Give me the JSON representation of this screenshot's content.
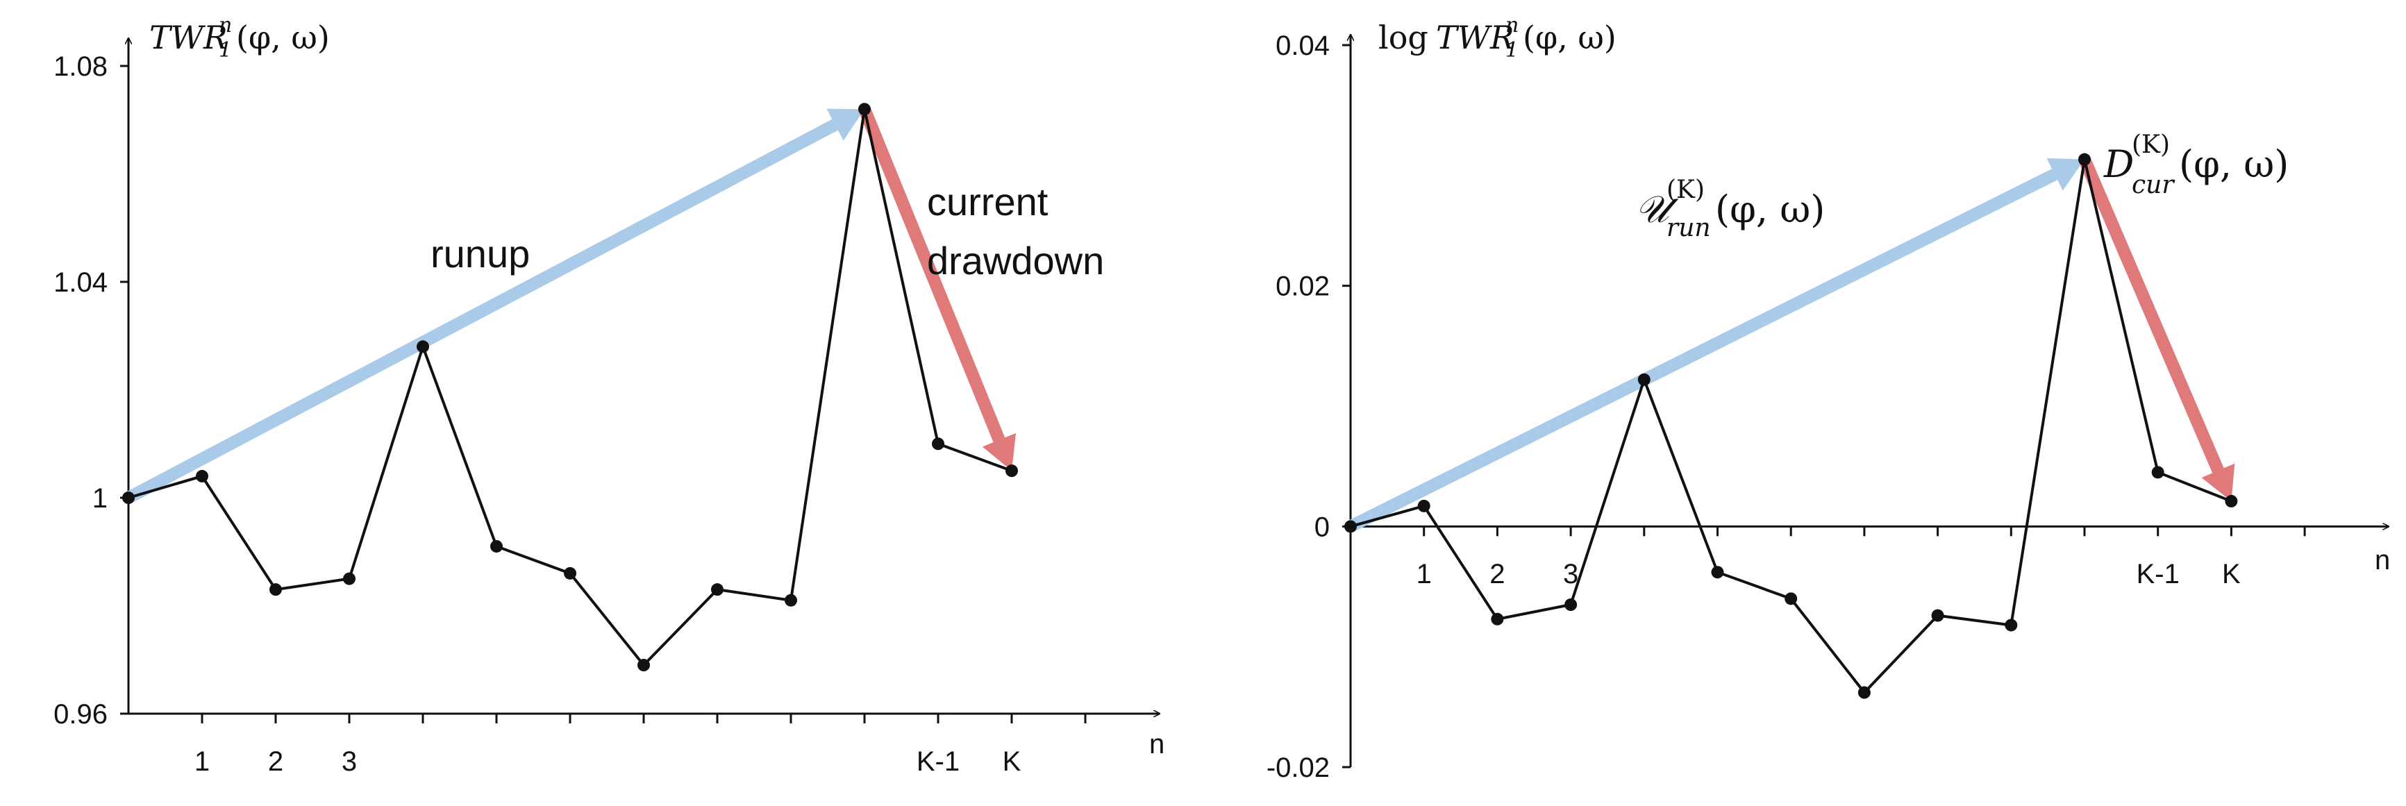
{
  "chart_data": [
    {
      "type": "line",
      "title": "",
      "ylabel": "TWR₁ⁿ(φ, ω)",
      "xlabel": "n",
      "ylim": [
        0.96,
        1.1
      ],
      "yticks": [
        0.96,
        1,
        1.04,
        1.08
      ],
      "ytick_labels": [
        "0.96",
        "1",
        "1.04",
        "1.08"
      ],
      "x_tick_count": 13,
      "xtick_labels": [
        {
          "x": 1,
          "label": "1"
        },
        {
          "x": 2,
          "label": "2"
        },
        {
          "x": 3,
          "label": "3"
        },
        {
          "x": 11,
          "label": "K-1"
        },
        {
          "x": 12,
          "label": "K"
        }
      ],
      "x": [
        0,
        1,
        2,
        3,
        4,
        5,
        6,
        7,
        8,
        9,
        10,
        11,
        12
      ],
      "values": [
        1.0,
        1.004,
        0.983,
        0.985,
        1.028,
        0.991,
        0.986,
        0.969,
        0.983,
        0.981,
        1.072,
        1.01,
        1.005
      ],
      "arrows": [
        {
          "name": "runup",
          "from": [
            0,
            1.0
          ],
          "to": [
            10,
            1.072
          ],
          "color": "#a9cbe9"
        },
        {
          "name": "drawdown",
          "from": [
            10,
            1.072
          ],
          "to": [
            12,
            1.005
          ],
          "color": "#e07a7a"
        }
      ],
      "annotations": [
        {
          "text": "runup",
          "x": 5.0,
          "y": 1.056
        },
        {
          "text": "current",
          "x": 10.9,
          "y": 1.067
        },
        {
          "text": "drawdown",
          "x": 10.9,
          "y": 1.055
        }
      ]
    },
    {
      "type": "line",
      "title": "",
      "ylabel": "log TWR₁ⁿ(φ, ω)",
      "xlabel": "n",
      "ylim": [
        -0.02,
        0.04
      ],
      "yticks": [
        -0.02,
        0,
        0.02,
        0.04
      ],
      "ytick_labels": [
        "-0.02",
        "0",
        "0.02",
        "0.04"
      ],
      "x_tick_count": 13,
      "xtick_labels": [
        {
          "x": 1,
          "label": "1"
        },
        {
          "x": 2,
          "label": "2"
        },
        {
          "x": 3,
          "label": "3"
        },
        {
          "x": 11,
          "label": "K-1"
        },
        {
          "x": 12,
          "label": "K"
        }
      ],
      "x": [
        0,
        1,
        2,
        3,
        4,
        5,
        6,
        7,
        8,
        9,
        10,
        11,
        12
      ],
      "values": [
        0.0,
        0.0017,
        -0.0077,
        -0.0065,
        0.0122,
        -0.0038,
        -0.006,
        -0.0138,
        -0.0074,
        -0.0082,
        0.0305,
        0.0045,
        0.0021
      ],
      "arrows": [
        {
          "name": "runup",
          "from": [
            0,
            0.0
          ],
          "to": [
            10,
            0.0305
          ],
          "color": "#a9cbe9"
        },
        {
          "name": "drawdown",
          "from": [
            10,
            0.0305
          ],
          "to": [
            12,
            0.0021
          ],
          "color": "#e07a7a"
        }
      ],
      "annotations": [
        {
          "text": "𝒰_run^(K)(φ, ω)",
          "x": 4.8,
          "y": 0.0245
        },
        {
          "text": "D_cur^(K)(φ, ω)",
          "x": 10.5,
          "y": 0.0292
        }
      ]
    }
  ]
}
